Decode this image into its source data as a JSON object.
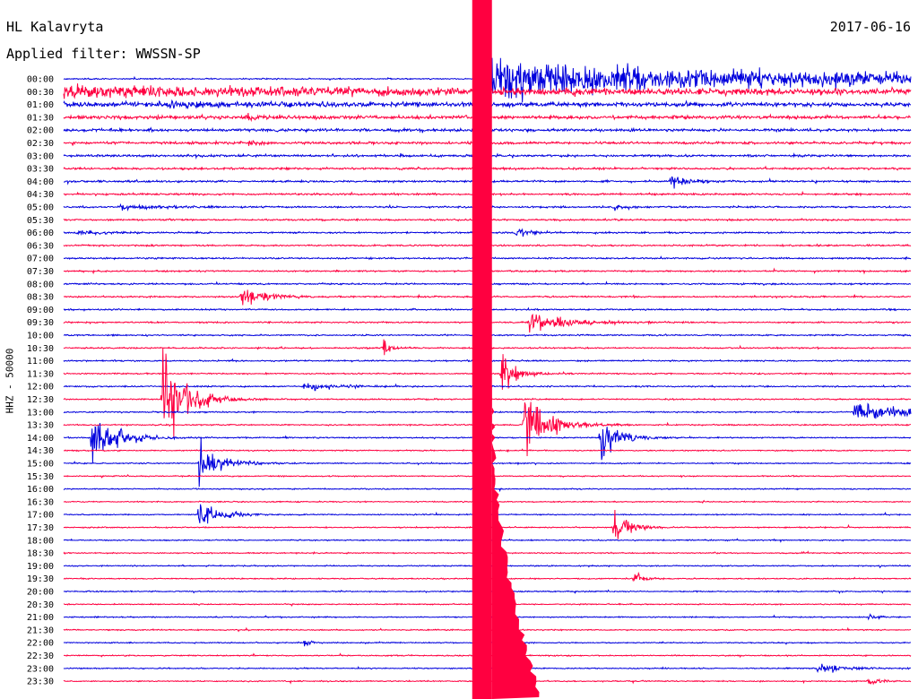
{
  "header": {
    "station": "HL Kalavryta",
    "filter": "Applied filter: WWSSN-SP",
    "date": "2017-06-16"
  },
  "chart_data": {
    "type": "helicorder",
    "title": "HL Kalavryta",
    "subtitle": "Applied filter: WWSSN-SP",
    "date": "2017-06-16",
    "ylabel": "HHZ - 50000",
    "row_labels": [
      "00:00",
      "00:30",
      "01:00",
      "01:30",
      "02:00",
      "02:30",
      "03:00",
      "03:30",
      "04:00",
      "04:30",
      "05:00",
      "05:30",
      "06:00",
      "06:30",
      "07:00",
      "07:30",
      "08:00",
      "08:30",
      "09:00",
      "09:30",
      "10:00",
      "10:30",
      "11:00",
      "11:30",
      "12:00",
      "12:30",
      "13:00",
      "13:30",
      "14:00",
      "14:30",
      "15:00",
      "15:30",
      "16:00",
      "16:30",
      "17:00",
      "17:30",
      "18:00",
      "18:30",
      "19:00",
      "19:30",
      "20:00",
      "20:30",
      "21:00",
      "21:30",
      "22:00",
      "22:30",
      "23:00",
      "23:30"
    ],
    "colors": [
      "#0000dd",
      "#ff0040"
    ],
    "row_minutes": 30,
    "events": [
      {
        "row": 2,
        "min": 3.7,
        "amp": 0.15,
        "dur": 2.5
      },
      {
        "row": 3,
        "min": 6.5,
        "amp": 0.2,
        "dur": 1.0
      },
      {
        "row": 5,
        "min": 6.5,
        "amp": 0.15,
        "dur": 0.8
      },
      {
        "row": 8,
        "min": 21.5,
        "amp": 0.5,
        "dur": 1.0
      },
      {
        "row": 10,
        "min": 2.0,
        "amp": 0.2,
        "dur": 2.0
      },
      {
        "row": 10,
        "min": 19.5,
        "amp": 0.25,
        "dur": 0.6
      },
      {
        "row": 12,
        "min": 16.0,
        "amp": 0.3,
        "dur": 1.0
      },
      {
        "row": 12,
        "min": 0.5,
        "amp": 0.15,
        "dur": 2.0
      },
      {
        "row": 17,
        "min": 6.3,
        "amp": 0.9,
        "dur": 1.2
      },
      {
        "row": 19,
        "min": 16.5,
        "amp": 0.9,
        "dur": 2.0
      },
      {
        "row": 21,
        "min": 11.3,
        "amp": 0.8,
        "dur": 0.4
      },
      {
        "row": 23,
        "min": 15.5,
        "amp": 1.6,
        "dur": 0.8
      },
      {
        "row": 24,
        "min": 8.5,
        "amp": 0.4,
        "dur": 1.5
      },
      {
        "row": 25,
        "min": 3.5,
        "amp": 5.0,
        "dur": 1.2
      },
      {
        "row": 26,
        "min": 28.0,
        "amp": 0.8,
        "dur": 3.0
      },
      {
        "row": 27,
        "min": 16.3,
        "amp": 3.5,
        "dur": 1.2
      },
      {
        "row": 28,
        "min": 1.0,
        "amp": 3.2,
        "dur": 1.2
      },
      {
        "row": 28,
        "min": 19.0,
        "amp": 2.2,
        "dur": 1.0
      },
      {
        "row": 30,
        "min": 4.8,
        "amp": 2.0,
        "dur": 1.2
      },
      {
        "row": 34,
        "min": 4.8,
        "amp": 1.5,
        "dur": 1.0
      },
      {
        "row": 35,
        "min": 19.5,
        "amp": 1.5,
        "dur": 0.8
      },
      {
        "row": 39,
        "min": 20.2,
        "amp": 0.6,
        "dur": 0.5
      },
      {
        "row": 42,
        "min": 28.5,
        "amp": 0.3,
        "dur": 0.4
      },
      {
        "row": 44,
        "min": 8.5,
        "amp": 0.3,
        "dur": 0.4
      },
      {
        "row": 46,
        "min": 26.7,
        "amp": 0.5,
        "dur": 1.5
      },
      {
        "row": 47,
        "min": 28.5,
        "amp": 0.4,
        "dur": 0.5
      }
    ],
    "mainshock": {
      "row": 0,
      "min": 14.5
    }
  }
}
